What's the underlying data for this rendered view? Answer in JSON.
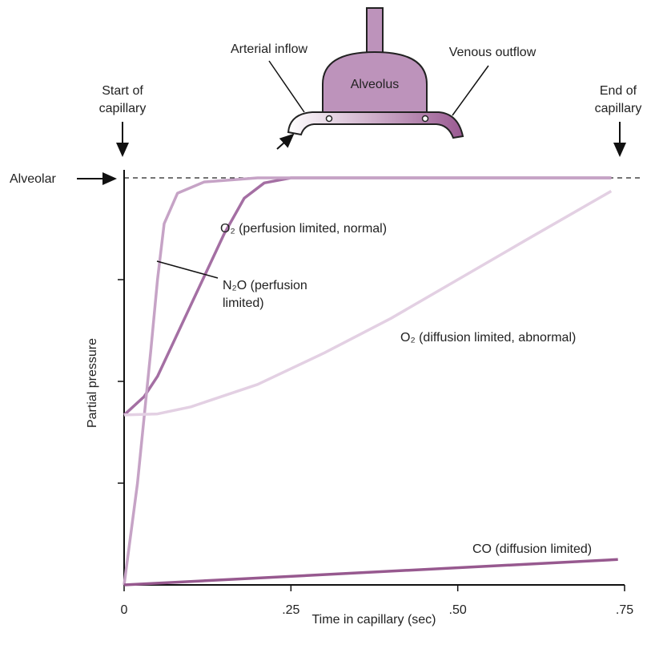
{
  "chart_data": {
    "type": "line",
    "xlabel": "Time in capillary (sec)",
    "ylabel": "Partial pressure",
    "xlim": [
      0,
      0.75
    ],
    "xticks": [
      0,
      {
        "value": 0.25,
        "label": ".25"
      },
      {
        "value": 0.5,
        "label": ".50"
      },
      {
        "value": 0.75,
        "label": ".75"
      }
    ],
    "ylim": [
      0,
      4
    ],
    "yticks": [
      1,
      2,
      3
    ],
    "annotations": {
      "start": [
        "Start of",
        "capillary"
      ],
      "end": [
        "End of",
        "capillary"
      ],
      "alveolar": "Alveolar",
      "arterial": "Arterial inflow",
      "venous": "Venous outflow",
      "alveolus": "Alveolus"
    },
    "series": [
      {
        "name": "O₂ (perfusion limited, normal)",
        "color": "#a46fa3",
        "x": [
          0,
          0.03,
          0.05,
          0.1,
          0.15,
          0.18,
          0.21,
          0.25,
          0.73
        ],
        "values": [
          1.67,
          1.85,
          2.05,
          2.75,
          3.45,
          3.8,
          3.95,
          4.0,
          4.0
        ]
      },
      {
        "name": "N₂O (perfusion limited)",
        "color": "#c6a3c6",
        "x": [
          0,
          0.02,
          0.04,
          0.05,
          0.06,
          0.08,
          0.12,
          0.2,
          0.73
        ],
        "values": [
          0,
          1.0,
          2.3,
          3.0,
          3.55,
          3.85,
          3.96,
          4.0,
          4.0
        ]
      },
      {
        "name": "O₂ (diffusion limited, abnormal)",
        "color": "#e3d0e3",
        "x": [
          0,
          0.05,
          0.1,
          0.2,
          0.3,
          0.4,
          0.5,
          0.6,
          0.73
        ],
        "values": [
          1.67,
          1.68,
          1.75,
          1.97,
          2.28,
          2.62,
          3.0,
          3.38,
          3.87
        ]
      },
      {
        "name": "CO (diffusion limited)",
        "color": "#97598f",
        "x": [
          0,
          0.74
        ],
        "values": [
          0,
          0.25
        ]
      }
    ]
  }
}
